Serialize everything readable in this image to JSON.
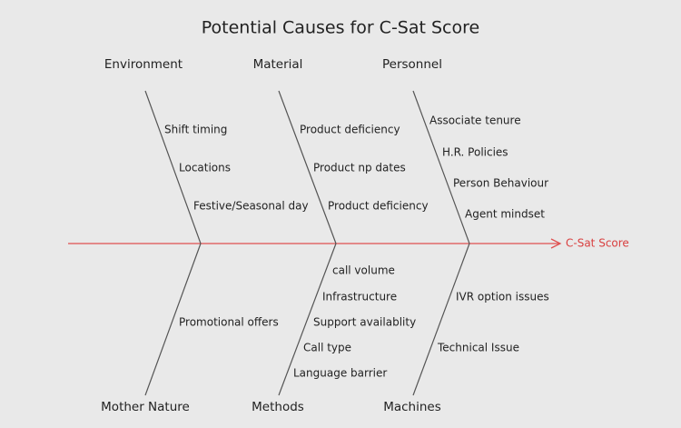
{
  "title": "Potential Causes for C-Sat Score",
  "effect": "C-Sat Score",
  "categories": [
    {
      "label": "Environment",
      "causes": [
        "Shift timing",
        "Locations",
        "Festive/Seasonal day"
      ]
    },
    {
      "label": "Material",
      "causes": [
        "Product deficiency",
        "Product np dates",
        "Product deficiency"
      ]
    },
    {
      "label": "Personnel",
      "causes": [
        "Associate tenure",
        "H.R. Policies",
        "Person Behaviour",
        "Agent mindset"
      ]
    },
    {
      "label": "Mother Nature",
      "causes": [
        "Promotional offers"
      ]
    },
    {
      "label": "Methods",
      "causes": [
        "call volume",
        "Infrastructure",
        "Support availablity",
        "Call type",
        "Language barrier"
      ]
    },
    {
      "label": "Machines",
      "causes": [
        "IVR option issues",
        "Technical Issue"
      ]
    }
  ]
}
